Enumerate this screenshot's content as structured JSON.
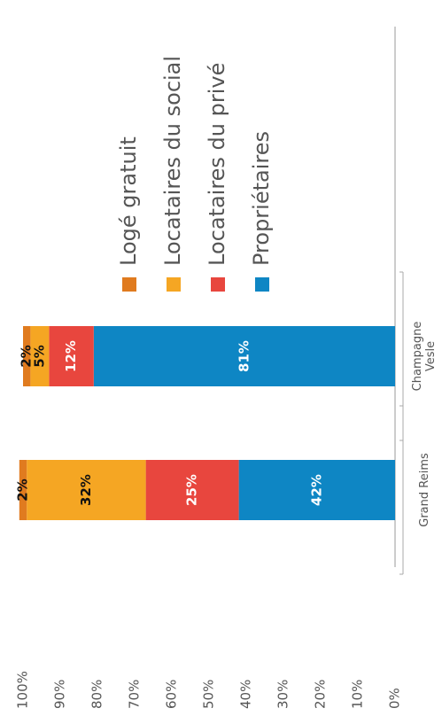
{
  "chart_data": {
    "type": "bar",
    "stacked": true,
    "orientation": "rotated 90° counter-clockwise (vertical bars drawn left-to-right)",
    "categories": [
      "Grand Reims",
      "Champagne Vesle"
    ],
    "series": [
      {
        "name": "Propriétaires",
        "values": [
          42,
          81
        ],
        "color": "#0e86c4",
        "labels": [
          "42%",
          "81%"
        ]
      },
      {
        "name": "Locataires du privé",
        "values": [
          25,
          12
        ],
        "color": "#e8463e",
        "labels": [
          "25%",
          "12%"
        ]
      },
      {
        "name": "Locataires du social",
        "values": [
          32,
          5
        ],
        "color": "#f5a623",
        "labels": [
          "32%",
          "5%"
        ]
      },
      {
        "name": "Logé gratuit",
        "values": [
          2,
          2
        ],
        "color": "#e07b1f",
        "labels": [
          "2%",
          "2%"
        ]
      }
    ],
    "yticks": [
      "0%",
      "10%",
      "20%",
      "30%",
      "40%",
      "50%",
      "60%",
      "70%",
      "80%",
      "90%",
      "100%"
    ],
    "ylim": [
      0,
      100
    ],
    "legend_order": [
      "Logé gratuit",
      "Locataires du social",
      "Locataires du privé",
      "Propriétaires"
    ],
    "legend_position": "right"
  }
}
